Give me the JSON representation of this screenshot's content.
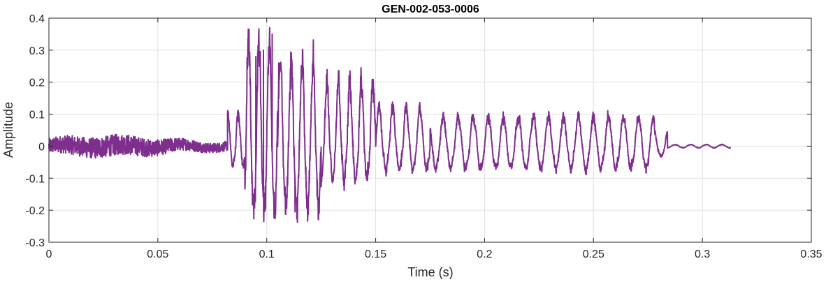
{
  "chart_data": {
    "type": "line",
    "title": "GEN-002-053-0006",
    "xlabel": "Time (s)",
    "ylabel": "Amplitude",
    "xlim": [
      0,
      0.35
    ],
    "ylim": [
      -0.3,
      0.4
    ],
    "grid": true,
    "x_ticks": [
      0,
      0.05,
      0.1,
      0.15,
      0.2,
      0.25,
      0.3,
      0.35
    ],
    "x_tick_labels": [
      "0",
      "0.05",
      "0.1",
      "0.15",
      "0.2",
      "0.25",
      "0.3",
      "0.35"
    ],
    "y_ticks": [
      -0.3,
      -0.2,
      -0.1,
      0,
      0.1,
      0.2,
      0.3,
      0.4
    ],
    "y_tick_labels": [
      "-0.3",
      "-0.2",
      "-0.1",
      "0",
      "0.1",
      "0.2",
      "0.3",
      "0.4"
    ],
    "series": [
      {
        "color": "#7E2F8E",
        "x_range": [
          0,
          0.313
        ],
        "segments": [
          {
            "t0": 0.0,
            "t1": 0.082,
            "envelope_pos": 0.03,
            "envelope_neg": -0.03,
            "freq_hz": 450,
            "kind": "noise"
          },
          {
            "t0": 0.082,
            "t1": 0.09,
            "envelope_pos": 0.1,
            "envelope_neg": -0.06,
            "freq_hz": 210
          },
          {
            "t0": 0.09,
            "t1": 0.105,
            "envelope_pos": 0.33,
            "envelope_neg": -0.2,
            "freq_hz": 210
          },
          {
            "t0": 0.105,
            "t1": 0.125,
            "envelope_pos": 0.26,
            "envelope_neg": -0.19,
            "freq_hz": 200
          },
          {
            "t0": 0.125,
            "t1": 0.15,
            "envelope_pos": 0.2,
            "envelope_neg": -0.1,
            "freq_hz": 190
          },
          {
            "t0": 0.15,
            "t1": 0.175,
            "envelope_pos": 0.12,
            "envelope_neg": -0.07,
            "freq_hz": 160
          },
          {
            "t0": 0.175,
            "t1": 0.278,
            "envelope_pos": 0.09,
            "envelope_neg": -0.07,
            "freq_hz": 145
          },
          {
            "t0": 0.278,
            "t1": 0.284,
            "envelope_pos": 0.05,
            "envelope_neg": -0.03,
            "freq_hz": 145
          },
          {
            "t0": 0.284,
            "t1": 0.313,
            "envelope_pos": 0.005,
            "envelope_neg": -0.005,
            "freq_hz": 140
          }
        ],
        "peaks": [
          {
            "x": 0.1025,
            "y": 0.35
          },
          {
            "x": 0.0985,
            "y": 0.3
          },
          {
            "x": 0.095,
            "y": 0.28
          },
          {
            "x": 0.1055,
            "y": 0.26
          },
          {
            "x": 0.113,
            "y": -0.205
          },
          {
            "x": 0.1035,
            "y": -0.2
          },
          {
            "x": 0.094,
            "y": -0.16
          }
        ]
      }
    ]
  }
}
